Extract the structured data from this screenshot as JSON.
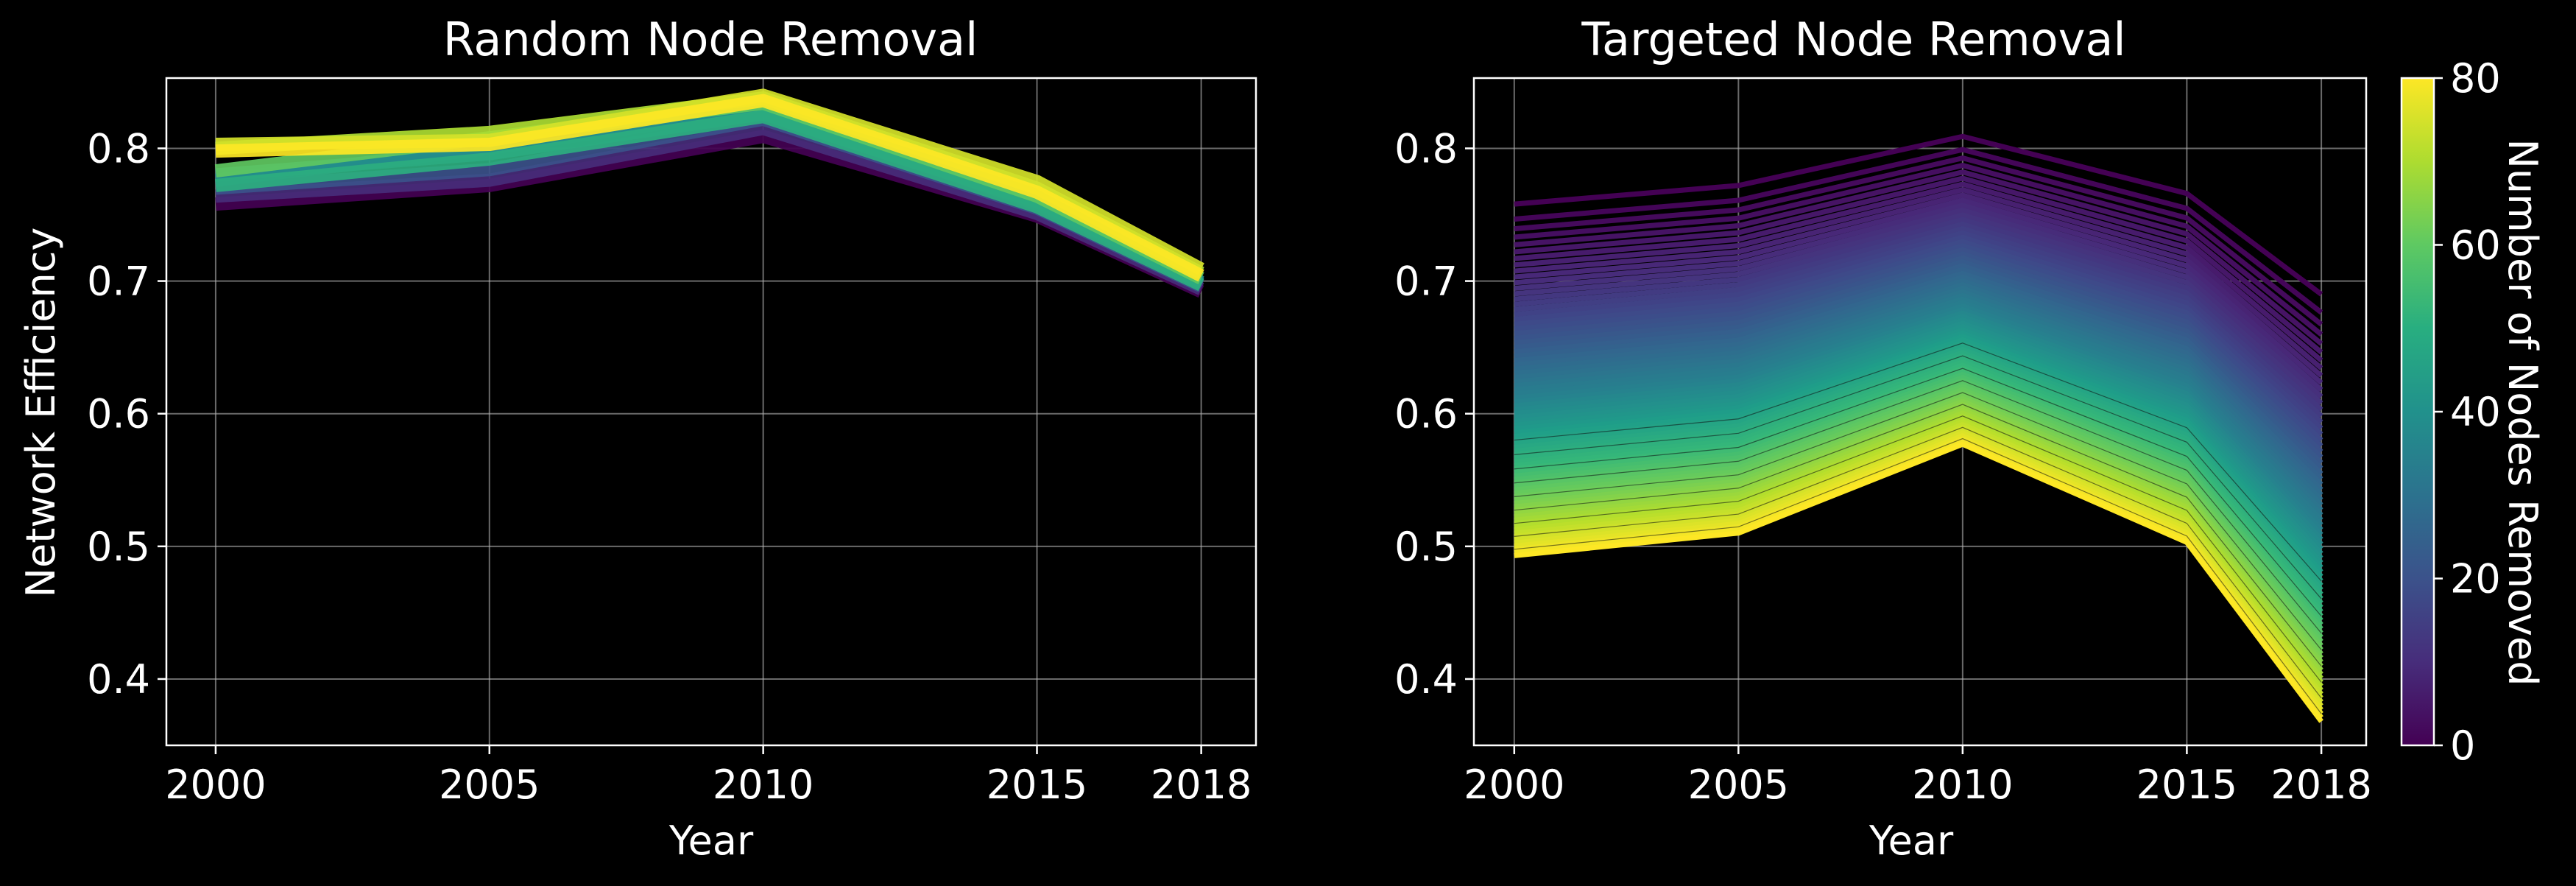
{
  "colors": {
    "background": "#000000",
    "foreground": "#ffffff",
    "grid": "#b0b0b0",
    "colormap": "viridis"
  },
  "colorbar": {
    "label": "Number of Nodes Removed",
    "min": 0,
    "max": 80,
    "ticks": [
      "0",
      "20",
      "40",
      "60",
      "80"
    ]
  },
  "chart_data": [
    {
      "type": "line",
      "title": "Random Node Removal",
      "xlabel": "Year",
      "ylabel": "Network Efficiency",
      "x": [
        2000,
        2005,
        2010,
        2015,
        2018
      ],
      "xticks": [
        "2000",
        "2005",
        "2010",
        "2015",
        "2018"
      ],
      "yticks": [
        "0.4",
        "0.5",
        "0.6",
        "0.7",
        "0.8"
      ],
      "xlim": [
        1999.1,
        2019.0
      ],
      "ylim": [
        0.35,
        0.853
      ],
      "grid": true,
      "color_encoding": "number of nodes removed (0-80, viridis)",
      "series": [
        {
          "removed": 0,
          "values": [
            0.758,
            0.772,
            0.809,
            0.749,
            0.692
          ]
        },
        {
          "removed": 10,
          "values": [
            0.764,
            0.776,
            0.815,
            0.751,
            0.694
          ]
        },
        {
          "removed": 20,
          "values": [
            0.77,
            0.784,
            0.822,
            0.755,
            0.696
          ]
        },
        {
          "removed": 30,
          "values": [
            0.776,
            0.8,
            0.83,
            0.758,
            0.698
          ]
        },
        {
          "removed": 40,
          "values": [
            0.78,
            0.796,
            0.826,
            0.76,
            0.699
          ]
        },
        {
          "removed": 50,
          "values": [
            0.772,
            0.792,
            0.824,
            0.756,
            0.697
          ]
        },
        {
          "removed": 60,
          "values": [
            0.783,
            0.808,
            0.834,
            0.764,
            0.702
          ]
        },
        {
          "removed": 70,
          "values": [
            0.8,
            0.812,
            0.838,
            0.77,
            0.706
          ]
        },
        {
          "removed": 75,
          "values": [
            0.803,
            0.806,
            0.84,
            0.775,
            0.709
          ]
        },
        {
          "removed": 80,
          "values": [
            0.798,
            0.803,
            0.836,
            0.767,
            0.704
          ]
        }
      ]
    },
    {
      "type": "line",
      "title": "Targeted Node Removal",
      "xlabel": "Year",
      "ylabel": "",
      "x": [
        2000,
        2005,
        2010,
        2015,
        2018
      ],
      "xticks": [
        "2000",
        "2005",
        "2010",
        "2015",
        "2018"
      ],
      "yticks": [
        "0.4",
        "0.5",
        "0.6",
        "0.7",
        "0.8"
      ],
      "xlim": [
        1999.1,
        2019.0
      ],
      "ylim": [
        0.35,
        0.853
      ],
      "grid": true,
      "color_encoding": "number of nodes removed (0-80, viridis), one line per count",
      "series": [
        {
          "removed": 0,
          "values": [
            0.758,
            0.772,
            0.809,
            0.766,
            0.69
          ]
        },
        {
          "removed": 80,
          "values": [
            0.493,
            0.51,
            0.577,
            0.503,
            0.368
          ]
        }
      ]
    }
  ]
}
